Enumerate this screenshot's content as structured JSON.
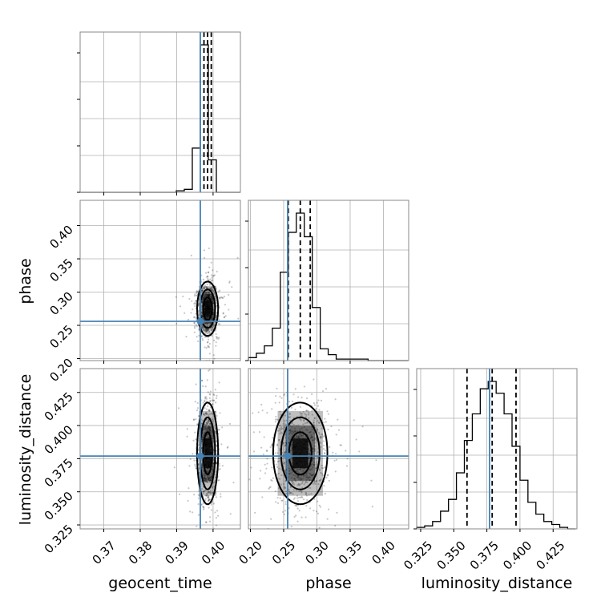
{
  "chart_data": {
    "type": "corner",
    "parameters": [
      "geocent_time",
      "phase",
      "luminosity_distance"
    ],
    "axis_labels": [
      "geocent_time",
      "phase",
      "luminosity_distance"
    ],
    "ranges": [
      [
        0.3635,
        0.4075
      ],
      [
        0.197,
        0.438
      ],
      [
        0.322,
        0.443
      ]
    ],
    "ticks": [
      {
        "values": [
          0.37,
          0.38,
          0.39,
          0.4
        ],
        "labels": [
          "0.37",
          "0.38",
          "0.39",
          "0.40"
        ]
      },
      {
        "values": [
          0.2,
          0.25,
          0.3,
          0.35,
          0.4
        ],
        "labels": [
          "0.20",
          "0.25",
          "0.30",
          "0.35",
          "0.40"
        ]
      },
      {
        "values": [
          0.325,
          0.35,
          0.375,
          0.4,
          0.425
        ],
        "labels": [
          "0.325",
          "0.350",
          "0.375",
          "0.400",
          "0.425"
        ]
      }
    ],
    "truth": [
      0.3965,
      0.256,
      0.377
    ],
    "quantiles": [
      [
        0.3975,
        0.3985,
        0.3995
      ],
      [
        0.257,
        0.275,
        0.29
      ],
      [
        0.36,
        0.379,
        0.397
      ]
    ],
    "histograms": [
      {
        "edges": [
          0.3635,
          0.3657,
          0.3679,
          0.3701,
          0.3723,
          0.3745,
          0.3767,
          0.3789,
          0.3811,
          0.3833,
          0.3855,
          0.3877,
          0.3899,
          0.3921,
          0.3943,
          0.3965,
          0.3987,
          0.4009,
          0.4031,
          0.4053,
          0.4075
        ],
        "counts": [
          0,
          0,
          0,
          0,
          0,
          0,
          0,
          0,
          0,
          0,
          0,
          0,
          0.01,
          0.02,
          0.3,
          1.0,
          0.22,
          0,
          0,
          0
        ]
      },
      {
        "edges": [
          0.197,
          0.209,
          0.221,
          0.233,
          0.245,
          0.257,
          0.269,
          0.281,
          0.293,
          0.305,
          0.317,
          0.329,
          0.341,
          0.353,
          0.365,
          0.377,
          0.389,
          0.401,
          0.413,
          0.425,
          0.437
        ],
        "counts": [
          0.02,
          0.05,
          0.1,
          0.22,
          0.6,
          0.87,
          1.0,
          0.84,
          0.36,
          0.08,
          0.04,
          0.01,
          0.01,
          0.01,
          0.01,
          0,
          0,
          0,
          0,
          0
        ]
      },
      {
        "edges": [
          0.322,
          0.328,
          0.334,
          0.34,
          0.346,
          0.352,
          0.358,
          0.364,
          0.37,
          0.376,
          0.382,
          0.388,
          0.394,
          0.4,
          0.406,
          0.412,
          0.418,
          0.424,
          0.43,
          0.436,
          0.442
        ],
        "counts": [
          0.01,
          0.02,
          0.05,
          0.12,
          0.2,
          0.38,
          0.6,
          0.78,
          0.95,
          1.0,
          0.92,
          0.78,
          0.56,
          0.33,
          0.18,
          0.1,
          0.05,
          0.03,
          0.01,
          0
        ]
      }
    ],
    "posterior_mean": [
      0.3985,
      0.275,
      0.379
    ],
    "posterior_sd": [
      0.0012,
      0.017,
      0.016
    ],
    "grid": true,
    "colors": {
      "truth": "#4682b4",
      "hist": "#000000",
      "quantile": "#000000",
      "grid": "#b0b0b0"
    }
  }
}
